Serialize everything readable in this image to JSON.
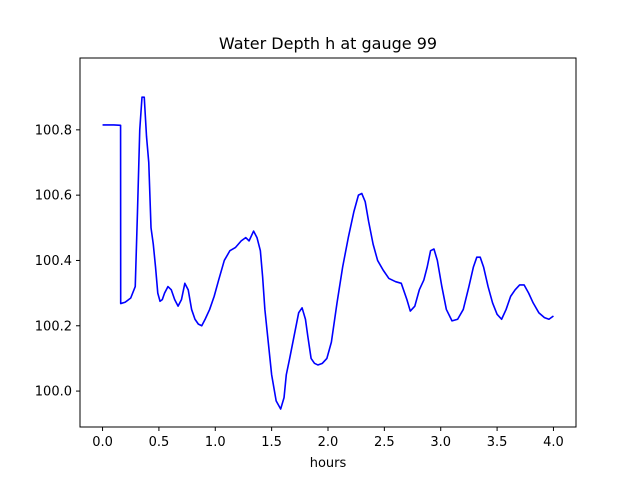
{
  "chart_data": {
    "type": "line",
    "title": "Water Depth h at gauge 99",
    "xlabel": "hours",
    "ylabel": "",
    "xlim": [
      -0.2,
      4.2
    ],
    "ylim": [
      99.89,
      101.02
    ],
    "xticks": [
      0.0,
      0.5,
      1.0,
      1.5,
      2.0,
      2.5,
      3.0,
      3.5,
      4.0
    ],
    "xtick_labels": [
      "0.0",
      "0.5",
      "1.0",
      "1.5",
      "2.0",
      "2.5",
      "3.0",
      "3.5",
      "4.0"
    ],
    "yticks": [
      100.0,
      100.2,
      100.4,
      100.6,
      100.8
    ],
    "ytick_labels": [
      "100.0",
      "100.2",
      "100.4",
      "100.6",
      "100.8"
    ],
    "grid": false,
    "series": [
      {
        "color": "#0000ff",
        "x": [
          0.0,
          0.1,
          0.16,
          0.161,
          0.2,
          0.25,
          0.29,
          0.31,
          0.33,
          0.35,
          0.37,
          0.39,
          0.41,
          0.43,
          0.45,
          0.47,
          0.49,
          0.51,
          0.53,
          0.55,
          0.58,
          0.61,
          0.64,
          0.67,
          0.7,
          0.73,
          0.76,
          0.79,
          0.82,
          0.85,
          0.88,
          0.91,
          0.95,
          0.99,
          1.03,
          1.08,
          1.13,
          1.18,
          1.23,
          1.27,
          1.3,
          1.34,
          1.37,
          1.4,
          1.42,
          1.44,
          1.47,
          1.5,
          1.54,
          1.58,
          1.61,
          1.63,
          1.66,
          1.7,
          1.74,
          1.77,
          1.8,
          1.82,
          1.85,
          1.88,
          1.91,
          1.95,
          1.99,
          2.03,
          2.08,
          2.13,
          2.18,
          2.23,
          2.27,
          2.3,
          2.33,
          2.36,
          2.4,
          2.44,
          2.49,
          2.54,
          2.6,
          2.65,
          2.7,
          2.73,
          2.77,
          2.81,
          2.85,
          2.88,
          2.91,
          2.94,
          2.97,
          3.01,
          3.05,
          3.1,
          3.15,
          3.2,
          3.25,
          3.29,
          3.32,
          3.35,
          3.38,
          3.42,
          3.46,
          3.5,
          3.54,
          3.58,
          3.62,
          3.66,
          3.7,
          3.74,
          3.78,
          3.82,
          3.87,
          3.92,
          3.96,
          4.0
        ],
        "y": [
          100.815,
          100.815,
          100.814,
          100.268,
          100.272,
          100.285,
          100.32,
          100.55,
          100.8,
          100.9,
          100.9,
          100.78,
          100.7,
          100.5,
          100.45,
          100.38,
          100.3,
          100.275,
          100.28,
          100.3,
          100.32,
          100.31,
          100.28,
          100.26,
          100.28,
          100.33,
          100.31,
          100.25,
          100.22,
          100.205,
          100.2,
          100.22,
          100.25,
          100.29,
          100.34,
          100.4,
          100.43,
          100.44,
          100.46,
          100.47,
          100.46,
          100.49,
          100.47,
          100.43,
          100.35,
          100.25,
          100.15,
          100.05,
          99.97,
          99.945,
          99.98,
          100.05,
          100.1,
          100.17,
          100.24,
          100.255,
          100.22,
          100.17,
          100.1,
          100.085,
          100.08,
          100.085,
          100.1,
          100.15,
          100.27,
          100.38,
          100.47,
          100.55,
          100.6,
          100.605,
          100.58,
          100.52,
          100.45,
          100.4,
          100.37,
          100.345,
          100.335,
          100.33,
          100.28,
          100.245,
          100.26,
          100.31,
          100.34,
          100.38,
          100.43,
          100.435,
          100.4,
          100.32,
          100.25,
          100.215,
          100.22,
          100.25,
          100.32,
          100.38,
          100.41,
          100.41,
          100.38,
          100.32,
          100.27,
          100.235,
          100.22,
          100.25,
          100.29,
          100.31,
          100.325,
          100.325,
          100.3,
          100.27,
          100.24,
          100.225,
          100.22,
          100.23
        ]
      }
    ]
  }
}
